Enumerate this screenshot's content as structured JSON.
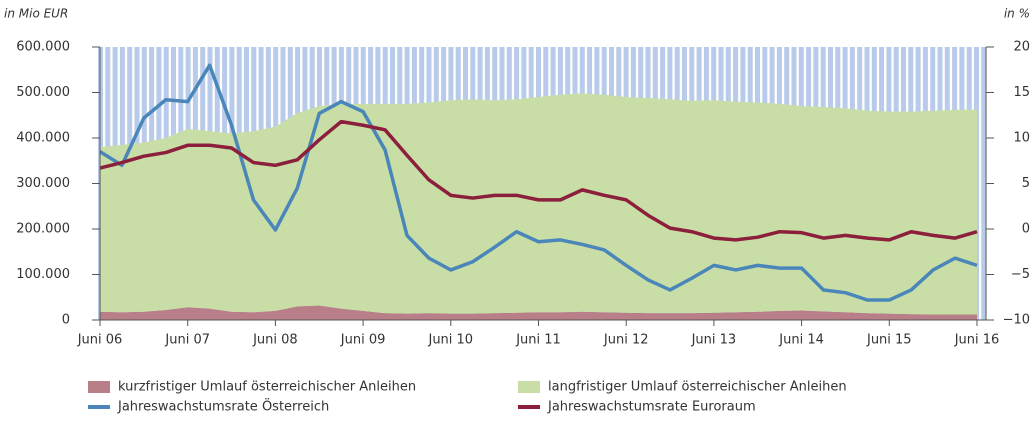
{
  "chart_data": {
    "type": "combo",
    "y_label": "in Mio EUR",
    "y2_label": "in %",
    "categories": [
      "Juni 06",
      null,
      null,
      null,
      "Juni 07",
      null,
      null,
      null,
      "Juni 08",
      null,
      null,
      null,
      "Juni 09",
      null,
      null,
      null,
      "Juni 10",
      null,
      null,
      null,
      "Juni 11",
      null,
      null,
      null,
      "Juni 12",
      null,
      null,
      null,
      "Juni 13",
      null,
      null,
      null,
      "Juni 14",
      null,
      null,
      null,
      "Juni 15",
      null,
      null,
      null,
      "Juni 16"
    ],
    "ylim": [
      0,
      600000
    ],
    "yticks": [
      0,
      {
        "value": 100000,
        "label": "100.000"
      },
      {
        "value": 200000,
        "label": "200.000"
      },
      {
        "value": 300000,
        "label": "300.000"
      },
      {
        "value": 400000,
        "label": "400.000"
      },
      {
        "value": 500000,
        "label": "500.000"
      },
      {
        "value": 600000,
        "label": "600.000"
      }
    ],
    "y2lim": [
      -10,
      20
    ],
    "y2ticks": [
      {
        "value": -10,
        "label": "−10"
      },
      {
        "value": -5,
        "label": "−5"
      },
      0,
      5,
      10,
      15,
      20
    ],
    "series": [
      {
        "name": "kurzfristiger Umlauf österreichischer Anleihen",
        "type": "area",
        "stack": true,
        "color": "#b97f88",
        "values": [
          18000,
          17000,
          18000,
          22000,
          28000,
          25000,
          18000,
          17000,
          20000,
          30000,
          32000,
          25000,
          20000,
          15000,
          14000,
          15000,
          14000,
          14000,
          15000,
          16000,
          17000,
          17000,
          18000,
          17000,
          16000,
          15000,
          15000,
          15000,
          16000,
          17000,
          18000,
          20000,
          21000,
          19000,
          17000,
          15000,
          14000,
          13000,
          12000,
          12000,
          12000
        ]
      },
      {
        "name": "langfristiger Umlauf österreichischer Anleihen",
        "type": "area",
        "stack": true,
        "color": "#c8dea6",
        "values": [
          362000,
          368000,
          372000,
          378000,
          392000,
          390000,
          392000,
          398000,
          405000,
          425000,
          438000,
          450000,
          455000,
          460000,
          461000,
          463000,
          469000,
          471000,
          468000,
          469000,
          473000,
          478000,
          480000,
          478000,
          474000,
          473000,
          470000,
          467000,
          467000,
          463000,
          460000,
          455000,
          449000,
          449000,
          448000,
          445000,
          444000,
          445000,
          448000,
          450000,
          450000
        ]
      },
      {
        "name": "Jahreswachstumsrate Österreich",
        "type": "line",
        "axis": "y2",
        "color": "#4a86b9",
        "values": [
          8.5,
          7,
          12.2,
          14.2,
          14,
          18,
          11.4,
          3.2,
          -0.1,
          4.5,
          12.7,
          14,
          12.9,
          8.7,
          -0.7,
          -3.2,
          -4.5,
          -3.6,
          -2,
          -0.3,
          -1.4,
          -1.2,
          -1.7,
          -2.3,
          -4,
          -5.6,
          -6.7,
          -5.4,
          -4,
          -4.5,
          -4,
          -4.3,
          -4.3,
          -6.7,
          -7,
          -7.8,
          -7.8,
          -6.7,
          -4.5,
          -3.2,
          -4
        ]
      },
      {
        "name": "Jahreswachstumsrate Euroraum",
        "type": "line",
        "axis": "y2",
        "color": "#8b1f3c",
        "values": [
          6.7,
          7.3,
          8,
          8.4,
          9.2,
          9.2,
          8.9,
          7.3,
          7,
          7.6,
          9.8,
          11.8,
          11.4,
          10.9,
          8.1,
          5.4,
          3.7,
          3.4,
          3.7,
          3.7,
          3.2,
          3.2,
          4.3,
          3.7,
          3.2,
          1.5,
          0.1,
          -0.3,
          -1,
          -1.2,
          -0.9,
          -0.3,
          -0.4,
          -1,
          -0.7,
          -1,
          -1.2,
          -0.3,
          -0.7,
          -1,
          -0.3
        ]
      }
    ]
  }
}
